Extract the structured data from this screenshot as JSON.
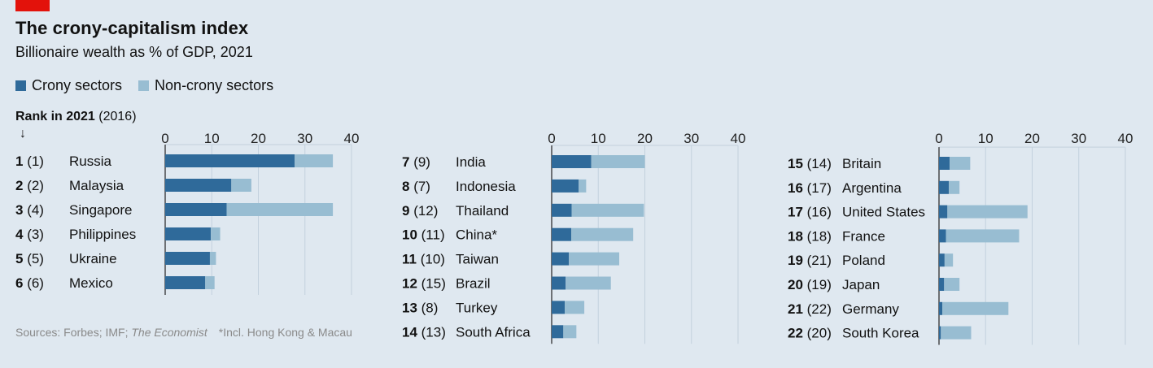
{
  "header": {
    "title": "The crony-capitalism index",
    "subtitle": "Billionaire wealth as % of GDP, 2021"
  },
  "legend": {
    "crony": "Crony sectors",
    "noncrony": "Non-crony sectors"
  },
  "rank_header": {
    "bold": "Rank in 2021",
    "rest": " (2016)",
    "arrow": "↓"
  },
  "footer": {
    "sources_prefix": "Sources: Forbes; IMF; ",
    "sources_italic": "The Economist",
    "note": "*Incl. Hong Kong & Macau"
  },
  "colors": {
    "crony": "#2f6a9a",
    "noncrony": "#98bdd2",
    "background": "#dfe8f0",
    "gridline": "#c3d1dd",
    "accent": "#e3120b"
  },
  "chart_data": {
    "type": "bar",
    "orientation": "horizontal",
    "stacked": true,
    "series_names": [
      "Crony sectors",
      "Non-crony sectors"
    ],
    "xlim": [
      0,
      40
    ],
    "ticks": [
      0,
      10,
      20,
      30,
      40
    ],
    "panels": [
      {
        "rows": [
          {
            "rank": 1,
            "prev": 1,
            "country": "Russia",
            "crony": 27.8,
            "noncrony": 8.2
          },
          {
            "rank": 2,
            "prev": 2,
            "country": "Malaysia",
            "crony": 14.2,
            "noncrony": 4.3
          },
          {
            "rank": 3,
            "prev": 4,
            "country": "Singapore",
            "crony": 13.2,
            "noncrony": 22.8
          },
          {
            "rank": 4,
            "prev": 3,
            "country": "Philippines",
            "crony": 9.8,
            "noncrony": 2.0
          },
          {
            "rank": 5,
            "prev": 5,
            "country": "Ukraine",
            "crony": 9.6,
            "noncrony": 1.3
          },
          {
            "rank": 6,
            "prev": 6,
            "country": "Mexico",
            "crony": 8.6,
            "noncrony": 2.0
          }
        ]
      },
      {
        "rows": [
          {
            "rank": 7,
            "prev": 9,
            "country": "India",
            "crony": 8.5,
            "noncrony": 11.5
          },
          {
            "rank": 8,
            "prev": 7,
            "country": "Indonesia",
            "crony": 5.8,
            "noncrony": 1.6
          },
          {
            "rank": 9,
            "prev": 12,
            "country": "Thailand",
            "crony": 4.3,
            "noncrony": 15.5
          },
          {
            "rank": 10,
            "prev": 11,
            "country": "China*",
            "crony": 4.2,
            "noncrony": 13.3
          },
          {
            "rank": 11,
            "prev": 10,
            "country": "Taiwan",
            "crony": 3.7,
            "noncrony": 10.8
          },
          {
            "rank": 12,
            "prev": 15,
            "country": "Brazil",
            "crony": 3.0,
            "noncrony": 9.7
          },
          {
            "rank": 13,
            "prev": 8,
            "country": "Turkey",
            "crony": 2.8,
            "noncrony": 4.2
          },
          {
            "rank": 14,
            "prev": 13,
            "country": "South Africa",
            "crony": 2.5,
            "noncrony": 2.8
          }
        ]
      },
      {
        "rows": [
          {
            "rank": 15,
            "prev": 14,
            "country": "Britain",
            "crony": 2.3,
            "noncrony": 4.4
          },
          {
            "rank": 16,
            "prev": 17,
            "country": "Argentina",
            "crony": 2.1,
            "noncrony": 2.3
          },
          {
            "rank": 17,
            "prev": 16,
            "country": "United States",
            "crony": 1.8,
            "noncrony": 17.2
          },
          {
            "rank": 18,
            "prev": 18,
            "country": "France",
            "crony": 1.5,
            "noncrony": 15.7
          },
          {
            "rank": 19,
            "prev": 21,
            "country": "Poland",
            "crony": 1.2,
            "noncrony": 1.8
          },
          {
            "rank": 20,
            "prev": 19,
            "country": "Japan",
            "crony": 1.1,
            "noncrony": 3.3
          },
          {
            "rank": 21,
            "prev": 22,
            "country": "Germany",
            "crony": 0.7,
            "noncrony": 14.2
          },
          {
            "rank": 22,
            "prev": 20,
            "country": "South Korea",
            "crony": 0.4,
            "noncrony": 6.5
          }
        ]
      }
    ]
  }
}
